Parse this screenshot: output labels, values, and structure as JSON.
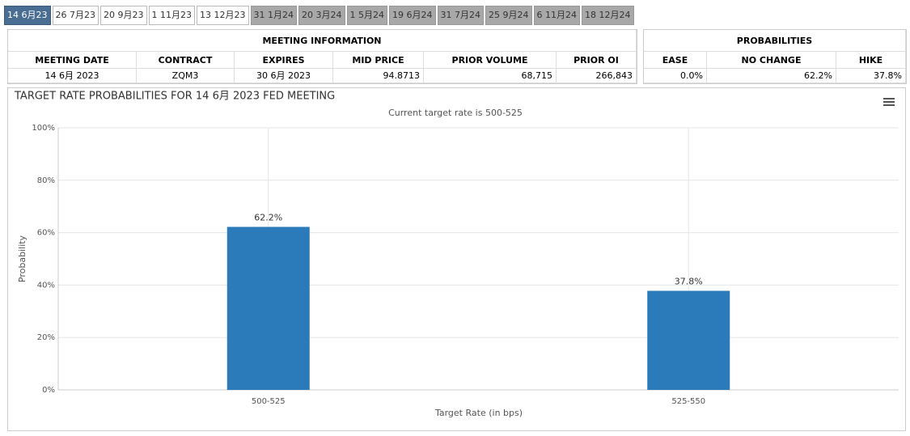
{
  "tabs": [
    {
      "label": "14 6月23",
      "state": "selected"
    },
    {
      "label": "26 7月23",
      "state": "enabled"
    },
    {
      "label": "20 9月23",
      "state": "enabled"
    },
    {
      "label": "1 11月23",
      "state": "enabled"
    },
    {
      "label": "13 12月23",
      "state": "enabled"
    },
    {
      "label": "31 1月24",
      "state": "disabled"
    },
    {
      "label": "20 3月24",
      "state": "disabled"
    },
    {
      "label": "1 5月24",
      "state": "disabled"
    },
    {
      "label": "19 6月24",
      "state": "disabled"
    },
    {
      "label": "31 7月24",
      "state": "disabled"
    },
    {
      "label": "25 9月24",
      "state": "disabled"
    },
    {
      "label": "6 11月24",
      "state": "disabled"
    },
    {
      "label": "18 12月24",
      "state": "disabled"
    }
  ],
  "meeting_info": {
    "title": "MEETING INFORMATION",
    "headers": [
      "MEETING DATE",
      "CONTRACT",
      "EXPIRES",
      "MID PRICE",
      "PRIOR VOLUME",
      "PRIOR OI"
    ],
    "rows": [
      [
        "14 6月 2023",
        "ZQM3",
        "30 6月 2023",
        "94.8713",
        "68,715",
        "266,843"
      ]
    ]
  },
  "probabilities": {
    "title": "PROBABILITIES",
    "headers": [
      "EASE",
      "NO CHANGE",
      "HIKE"
    ],
    "rows": [
      [
        "0.0%",
        "62.2%",
        "37.8%"
      ]
    ]
  },
  "chart_data": {
    "type": "bar",
    "title": "TARGET RATE PROBABILITIES FOR 14 6月 2023 FED MEETING",
    "subtitle": "Current target rate is 500-525",
    "x_label": "Target Rate (in bps)",
    "y_label": "Probability",
    "categories": [
      "500-525",
      "525-550"
    ],
    "values": [
      62.2,
      37.8
    ],
    "value_labels": [
      "62.2%",
      "37.8%"
    ],
    "color": "#2b7bba",
    "ylim": [
      0,
      100
    ],
    "yticks": [
      {
        "value": 0,
        "label": "0%"
      },
      {
        "value": 20,
        "label": "20%"
      },
      {
        "value": 40,
        "label": "40%"
      },
      {
        "value": 60,
        "label": "60%"
      },
      {
        "value": 80,
        "label": "80%"
      },
      {
        "value": 100,
        "label": "100%"
      }
    ],
    "grid": true
  }
}
